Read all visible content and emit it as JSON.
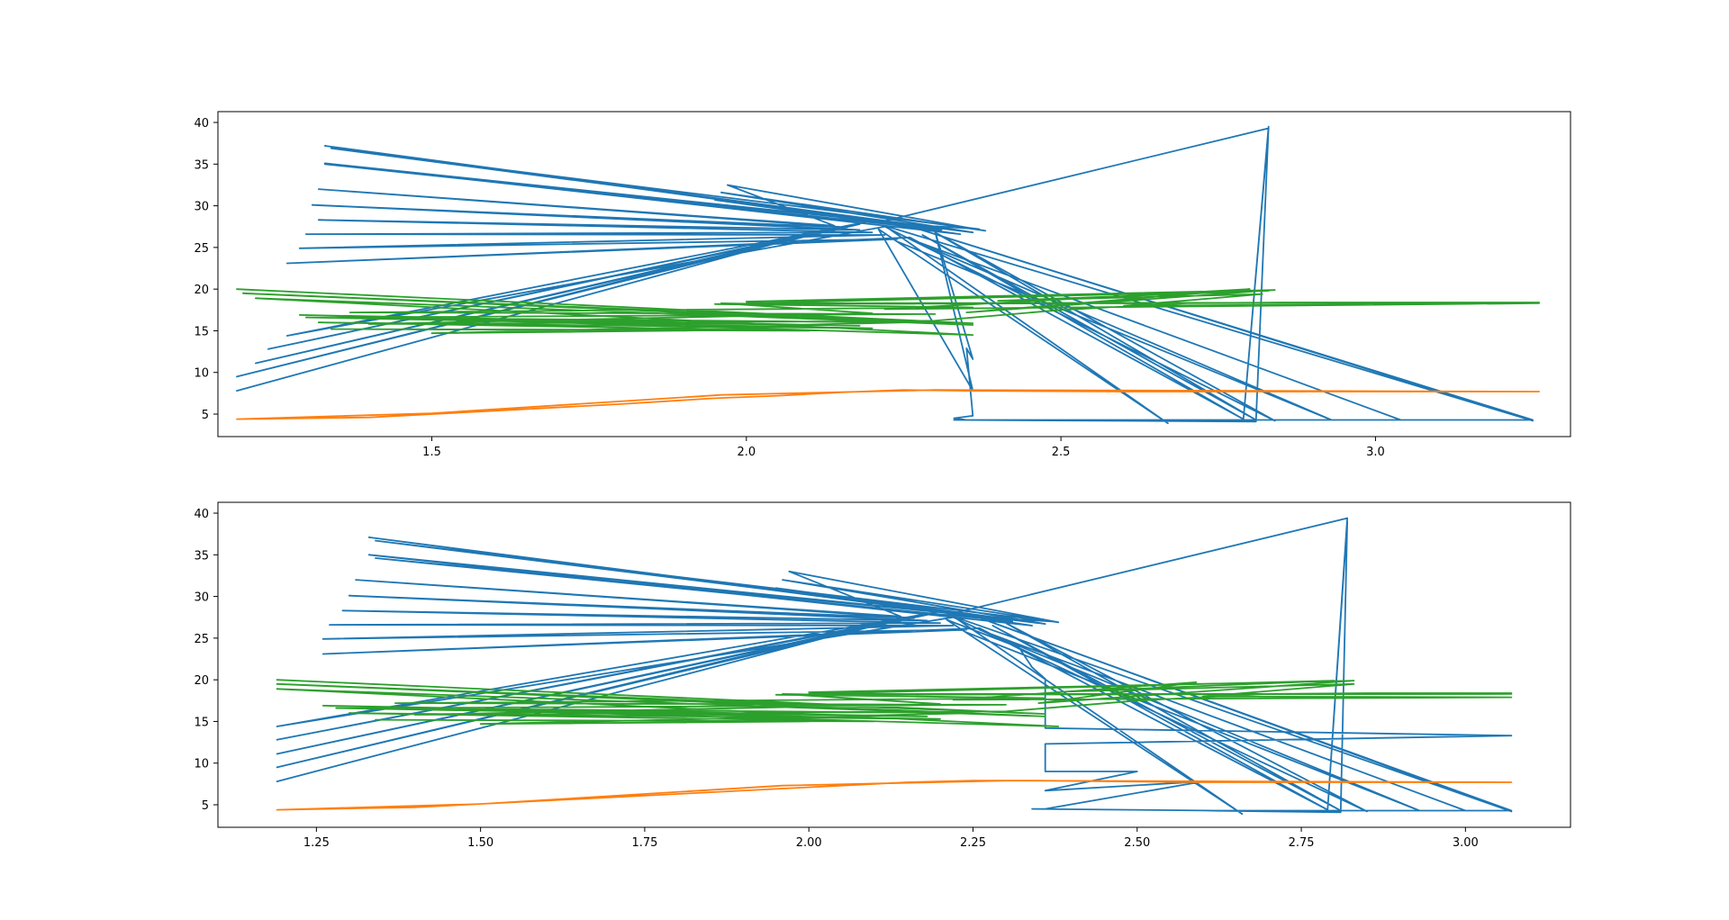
{
  "chart_data": [
    {
      "type": "line",
      "title": "",
      "xlabel": "",
      "ylabel": "",
      "xlim": [
        1.16,
        3.31
      ],
      "ylim": [
        2.3,
        41.3
      ],
      "xticks": [
        1.5,
        2.0,
        2.5,
        3.0
      ],
      "xtick_labels": [
        "1.5",
        "2.0",
        "2.5",
        "3.0"
      ],
      "yticks": [
        5,
        10,
        15,
        20,
        25,
        30,
        35,
        40
      ],
      "ytick_labels": [
        "5",
        "10",
        "15",
        "20",
        "25",
        "30",
        "35",
        "40"
      ],
      "grid": false,
      "series": [
        {
          "color": "#1f77b4",
          "points": [
            [
              1.19,
              7.8
            ],
            [
              2.12,
              27.0
            ],
            [
              1.19,
              9.5
            ],
            [
              2.15,
              27.4
            ],
            [
              1.22,
              11.1
            ],
            [
              2.18,
              27.8
            ],
            [
              1.24,
              12.8
            ],
            [
              2.2,
              28.2
            ],
            [
              1.27,
              14.4
            ],
            [
              2.22,
              27.5
            ],
            [
              2.84,
              4.2
            ],
            [
              2.3,
              26.8
            ],
            [
              2.81,
              4.3
            ],
            [
              2.28,
              26.5
            ],
            [
              2.79,
              4.4
            ],
            [
              2.26,
              26.2
            ],
            [
              1.27,
              23.1
            ],
            [
              2.24,
              26.0
            ],
            [
              1.29,
              24.9
            ],
            [
              2.22,
              26.5
            ],
            [
              1.3,
              26.6
            ],
            [
              2.2,
              26.8
            ],
            [
              1.32,
              28.3
            ],
            [
              2.18,
              27.1
            ],
            [
              1.31,
              30.1
            ],
            [
              2.16,
              27.4
            ],
            [
              1.32,
              32.0
            ],
            [
              2.14,
              27.6
            ],
            [
              1.97,
              32.5
            ],
            [
              2.38,
              27.0
            ],
            [
              1.96,
              31.6
            ],
            [
              2.36,
              26.8
            ],
            [
              1.95,
              30.7
            ],
            [
              2.34,
              26.6
            ],
            [
              1.33,
              35.1
            ],
            [
              2.32,
              27.3
            ],
            [
              1.33,
              35.0
            ],
            [
              2.31,
              27.1
            ],
            [
              1.33,
              37.2
            ],
            [
              2.35,
              26.9
            ],
            [
              1.34,
              36.9
            ],
            [
              2.37,
              27.2
            ],
            [
              2.21,
              28.0
            ],
            [
              2.83,
              39.3
            ],
            [
              2.79,
              4.3
            ],
            [
              2.83,
              39.5
            ],
            [
              2.81,
              4.1
            ],
            [
              2.33,
              4.3
            ],
            [
              3.25,
              4.3
            ],
            [
              2.24,
              28.0
            ],
            [
              3.25,
              4.2
            ],
            [
              2.22,
              27.6
            ],
            [
              2.67,
              3.9
            ],
            [
              2.21,
              27.2
            ],
            [
              2.36,
              7.8
            ],
            [
              2.3,
              26.9
            ],
            [
              2.36,
              11.6
            ],
            [
              2.35,
              12.9
            ],
            [
              2.36,
              4.8
            ],
            [
              2.33,
              4.5
            ],
            [
              2.35,
              4.3
            ],
            [
              3.04,
              4.3
            ],
            [
              2.26,
              26.0
            ],
            [
              2.93,
              4.3
            ],
            [
              2.24,
              25.7
            ]
          ]
        },
        {
          "color": "#ff7f0e",
          "points": [
            [
              1.19,
              4.4
            ],
            [
              1.4,
              4.6
            ],
            [
              1.6,
              5.4
            ],
            [
              1.8,
              6.2
            ],
            [
              1.95,
              6.9
            ],
            [
              2.05,
              7.2
            ],
            [
              2.15,
              7.6
            ],
            [
              2.25,
              7.9
            ],
            [
              2.35,
              7.8
            ],
            [
              2.6,
              7.7
            ],
            [
              3.26,
              7.7
            ],
            [
              2.3,
              7.9
            ],
            [
              1.96,
              7.3
            ],
            [
              1.5,
              5.1
            ],
            [
              1.19,
              4.4
            ]
          ]
        },
        {
          "color": "#2ca02c",
          "points": [
            [
              1.19,
              20.0
            ],
            [
              2.36,
              15.9
            ],
            [
              1.2,
              19.5
            ],
            [
              2.36,
              15.7
            ],
            [
              1.22,
              18.9
            ],
            [
              2.36,
              14.5
            ],
            [
              1.29,
              16.9
            ],
            [
              2.18,
              15.6
            ],
            [
              1.3,
              16.6
            ],
            [
              2.2,
              15.3
            ],
            [
              1.32,
              16.0
            ],
            [
              2.1,
              15.0
            ],
            [
              1.34,
              15.2
            ],
            [
              2.0,
              15.1
            ],
            [
              1.5,
              14.7
            ],
            [
              2.25,
              16.0
            ],
            [
              1.35,
              16.6
            ],
            [
              2.3,
              17.0
            ],
            [
              1.37,
              17.2
            ],
            [
              2.36,
              17.8
            ],
            [
              1.95,
              18.2
            ],
            [
              3.26,
              18.4
            ],
            [
              2.0,
              18.3
            ],
            [
              2.83,
              19.8
            ],
            [
              2.4,
              18.6
            ],
            [
              2.82,
              19.4
            ],
            [
              2.6,
              18.0
            ],
            [
              3.26,
              18.3
            ],
            [
              2.22,
              17.6
            ],
            [
              2.8,
              20.0
            ],
            [
              2.35,
              17.2
            ],
            [
              2.84,
              19.9
            ],
            [
              2.0,
              18.5
            ],
            [
              2.1,
              18.1
            ],
            [
              1.96,
              18.3
            ],
            [
              2.2,
              17.1
            ],
            [
              1.4,
              15.8
            ],
            [
              2.3,
              16.2
            ],
            [
              2.5,
              17.5
            ],
            [
              2.7,
              18.3
            ],
            [
              2.85,
              18.4
            ],
            [
              3.26,
              18.4
            ]
          ]
        }
      ]
    },
    {
      "type": "line",
      "title": "",
      "xlabel": "",
      "ylabel": "",
      "xlim": [
        1.1,
        3.16
      ],
      "ylim": [
        2.3,
        41.3
      ],
      "xticks": [
        1.25,
        1.5,
        1.75,
        2.0,
        2.25,
        2.5,
        2.75,
        3.0
      ],
      "xtick_labels": [
        "1.25",
        "1.50",
        "1.75",
        "2.00",
        "2.25",
        "2.50",
        "2.75",
        "3.00"
      ],
      "yticks": [
        5,
        10,
        15,
        20,
        25,
        30,
        35,
        40
      ],
      "ytick_labels": [
        "5",
        "10",
        "15",
        "20",
        "25",
        "30",
        "35",
        "40"
      ],
      "grid": false,
      "series": [
        {
          "color": "#1f77b4",
          "points": [
            [
              1.19,
              7.8
            ],
            [
              2.12,
              27.0
            ],
            [
              1.19,
              9.5
            ],
            [
              2.15,
              27.4
            ],
            [
              1.19,
              11.1
            ],
            [
              2.18,
              27.8
            ],
            [
              1.19,
              12.8
            ],
            [
              2.2,
              28.2
            ],
            [
              1.19,
              14.4
            ],
            [
              2.22,
              27.5
            ],
            [
              2.85,
              4.2
            ],
            [
              2.3,
              26.8
            ],
            [
              2.81,
              4.3
            ],
            [
              2.28,
              26.5
            ],
            [
              2.79,
              4.4
            ],
            [
              2.26,
              26.2
            ],
            [
              1.26,
              23.1
            ],
            [
              2.24,
              26.0
            ],
            [
              1.26,
              24.9
            ],
            [
              2.22,
              26.5
            ],
            [
              1.27,
              26.6
            ],
            [
              2.2,
              26.8
            ],
            [
              1.29,
              28.3
            ],
            [
              2.18,
              27.1
            ],
            [
              1.3,
              30.1
            ],
            [
              2.16,
              27.4
            ],
            [
              1.31,
              32.0
            ],
            [
              2.14,
              27.6
            ],
            [
              1.97,
              33.0
            ],
            [
              2.38,
              26.9
            ],
            [
              1.96,
              32.0
            ],
            [
              2.36,
              26.7
            ],
            [
              1.95,
              31.0
            ],
            [
              2.34,
              26.5
            ],
            [
              1.33,
              35.0
            ],
            [
              2.32,
              27.2
            ],
            [
              1.34,
              34.6
            ],
            [
              2.31,
              27.0
            ],
            [
              1.33,
              37.1
            ],
            [
              2.35,
              26.8
            ],
            [
              1.34,
              36.7
            ],
            [
              2.37,
              27.0
            ],
            [
              2.21,
              27.8
            ],
            [
              2.82,
              39.4
            ],
            [
              2.79,
              4.3
            ],
            [
              2.82,
              39.0
            ],
            [
              2.81,
              4.1
            ],
            [
              2.6,
              4.3
            ],
            [
              3.07,
              4.3
            ],
            [
              2.24,
              28.0
            ],
            [
              3.07,
              4.2
            ],
            [
              2.22,
              27.6
            ],
            [
              2.66,
              3.9
            ],
            [
              2.21,
              27.2
            ],
            [
              2.32,
              23.9
            ],
            [
              2.34,
              21.5
            ],
            [
              2.36,
              20.1
            ],
            [
              2.36,
              14.2
            ],
            [
              3.07,
              13.3
            ],
            [
              2.36,
              12.3
            ],
            [
              2.36,
              9.0
            ],
            [
              2.5,
              9.0
            ],
            [
              2.36,
              6.7
            ],
            [
              2.6,
              7.8
            ],
            [
              2.36,
              4.5
            ],
            [
              2.34,
              4.5
            ],
            [
              2.62,
              4.3
            ],
            [
              3.0,
              4.3
            ],
            [
              2.26,
              26.0
            ],
            [
              2.93,
              4.3
            ],
            [
              2.24,
              25.7
            ]
          ]
        },
        {
          "color": "#ff7f0e",
          "points": [
            [
              1.19,
              4.4
            ],
            [
              1.4,
              4.7
            ],
            [
              1.6,
              5.5
            ],
            [
              1.8,
              6.3
            ],
            [
              1.95,
              6.9
            ],
            [
              2.05,
              7.3
            ],
            [
              2.15,
              7.7
            ],
            [
              2.25,
              7.9
            ],
            [
              2.35,
              7.9
            ],
            [
              2.6,
              7.7
            ],
            [
              3.07,
              7.7
            ],
            [
              2.3,
              7.9
            ],
            [
              1.96,
              7.3
            ],
            [
              1.5,
              5.1
            ],
            [
              1.19,
              4.4
            ]
          ]
        },
        {
          "color": "#2ca02c",
          "points": [
            [
              1.19,
              20.0
            ],
            [
              2.36,
              15.9
            ],
            [
              1.19,
              19.5
            ],
            [
              2.36,
              15.6
            ],
            [
              1.19,
              18.9
            ],
            [
              2.38,
              14.4
            ],
            [
              1.26,
              16.9
            ],
            [
              2.18,
              15.6
            ],
            [
              1.28,
              16.6
            ],
            [
              2.2,
              15.3
            ],
            [
              1.3,
              16.0
            ],
            [
              2.1,
              15.0
            ],
            [
              1.34,
              15.2
            ],
            [
              2.0,
              15.0
            ],
            [
              1.5,
              14.7
            ],
            [
              2.25,
              16.0
            ],
            [
              1.35,
              16.6
            ],
            [
              2.3,
              17.0
            ],
            [
              1.37,
              17.2
            ],
            [
              2.36,
              17.8
            ],
            [
              1.95,
              18.2
            ],
            [
              3.07,
              18.3
            ],
            [
              2.0,
              18.3
            ],
            [
              2.8,
              19.9
            ],
            [
              2.4,
              18.6
            ],
            [
              2.83,
              19.5
            ],
            [
              2.6,
              18.0
            ],
            [
              3.07,
              17.9
            ],
            [
              2.22,
              17.6
            ],
            [
              2.59,
              19.7
            ],
            [
              2.35,
              17.2
            ],
            [
              2.83,
              19.9
            ],
            [
              2.0,
              18.5
            ],
            [
              2.1,
              18.1
            ],
            [
              1.96,
              18.3
            ],
            [
              2.2,
              17.1
            ],
            [
              1.4,
              15.8
            ],
            [
              2.3,
              16.2
            ],
            [
              2.5,
              17.5
            ],
            [
              2.7,
              18.3
            ],
            [
              2.85,
              18.4
            ],
            [
              3.07,
              18.4
            ]
          ]
        }
      ]
    }
  ]
}
